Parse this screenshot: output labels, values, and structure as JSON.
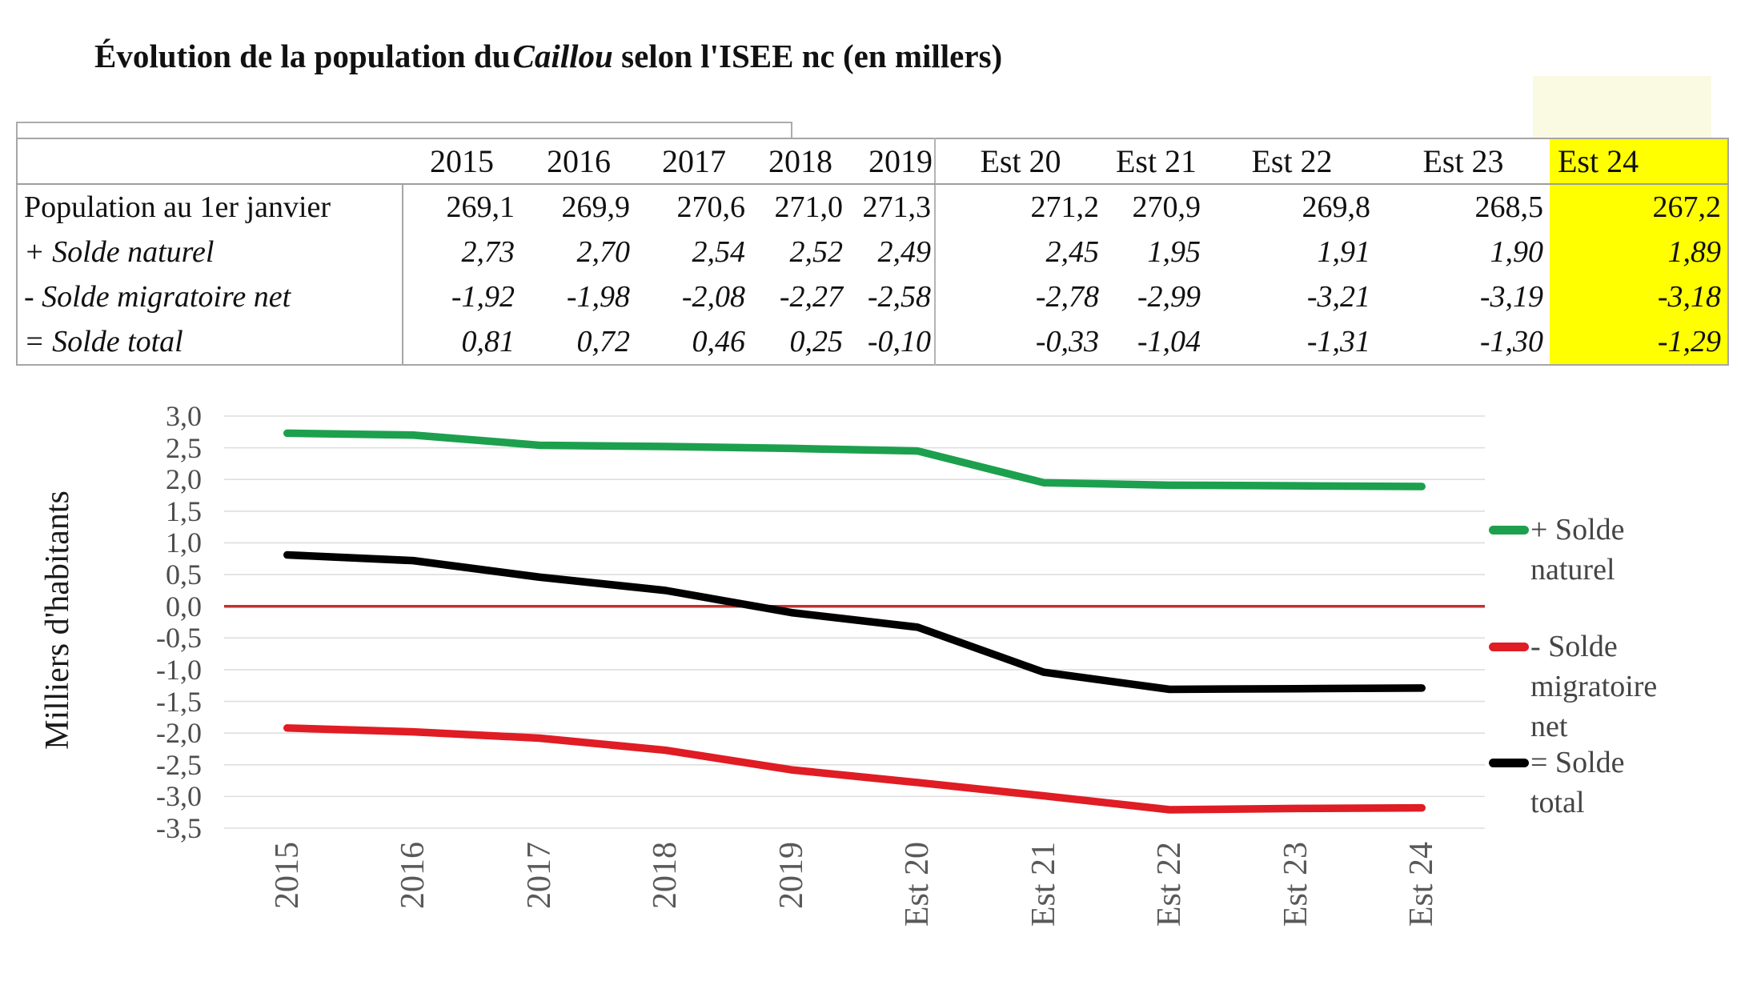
{
  "title": {
    "part1": "Évolution de la population du",
    "part2": "Caillou",
    "part3": " selon l'ISEE nc (en millers)"
  },
  "table": {
    "col_headers": [
      "",
      "2015",
      "2016",
      "2017",
      "2018",
      "2019",
      "Est 20",
      "Est 21",
      "Est 22",
      "Est 23",
      "Est 24"
    ],
    "rows": [
      {
        "label": "Population au 1er janvier",
        "style": "normal",
        "values": [
          "269,1",
          "269,9",
          "270,6",
          "271,0",
          "271,3",
          "271,2",
          "270,9",
          "269,8",
          "268,5",
          "267,2"
        ]
      },
      {
        "label": "+ Solde naturel",
        "style": "bold-italic",
        "values": [
          "2,73",
          "2,70",
          "2,54",
          "2,52",
          "2,49",
          "2,45",
          "1,95",
          "1,91",
          "1,90",
          "1,89"
        ]
      },
      {
        "label": "- Solde migratoire net",
        "style": "bold-italic",
        "values": [
          "-1,92",
          "-1,98",
          "-2,08",
          "-2,27",
          "-2,58",
          "-2,78",
          "-2,99",
          "-3,21",
          "-3,19",
          "-3,18"
        ]
      },
      {
        "label": "= Solde total",
        "style": "bold-italic",
        "values": [
          "0,81",
          "0,72",
          "0,46",
          "0,25",
          "-0,10",
          "-0,33",
          "-1,04",
          "-1,31",
          "-1,30",
          "-1,29"
        ]
      }
    ],
    "highlight_column": "Est 24",
    "highlight_color": "#FFFF00"
  },
  "chart_data": {
    "type": "line",
    "title": "",
    "categories": [
      "2015",
      "2016",
      "2017",
      "2018",
      "2019",
      "Est 20",
      "Est 21",
      "Est 22",
      "Est 23",
      "Est 24"
    ],
    "series": [
      {
        "name": "+ Solde naturel",
        "color": "#1CA04E",
        "values": [
          2.73,
          2.7,
          2.54,
          2.52,
          2.49,
          2.45,
          1.95,
          1.91,
          1.9,
          1.89
        ]
      },
      {
        "name": "- Solde migratoire net",
        "color": "#E01C24",
        "values": [
          -1.92,
          -1.98,
          -2.08,
          -2.27,
          -2.58,
          -2.78,
          -2.99,
          -3.21,
          -3.19,
          -3.18
        ]
      },
      {
        "name": "= Solde total",
        "color": "#000000",
        "values": [
          0.81,
          0.72,
          0.46,
          0.25,
          -0.1,
          -0.33,
          -1.04,
          -1.31,
          -1.3,
          -1.29
        ]
      }
    ],
    "xlabel": "",
    "ylabel": "Milliers d'habitants",
    "ylim": [
      -3.5,
      3.0
    ],
    "ytick_step": 0.5,
    "ytick_labels": [
      "3,0",
      "2,5",
      "2,0",
      "1,5",
      "1,0",
      "0,5",
      "0,0",
      "-0,5",
      "-1,0",
      "-1,5",
      "-2,0",
      "-2,5",
      "-3,0",
      "-3,5"
    ],
    "grid": true,
    "grid_color": "#DEDEDE",
    "zero_line_color": "#C23130",
    "legend_position": "right"
  }
}
